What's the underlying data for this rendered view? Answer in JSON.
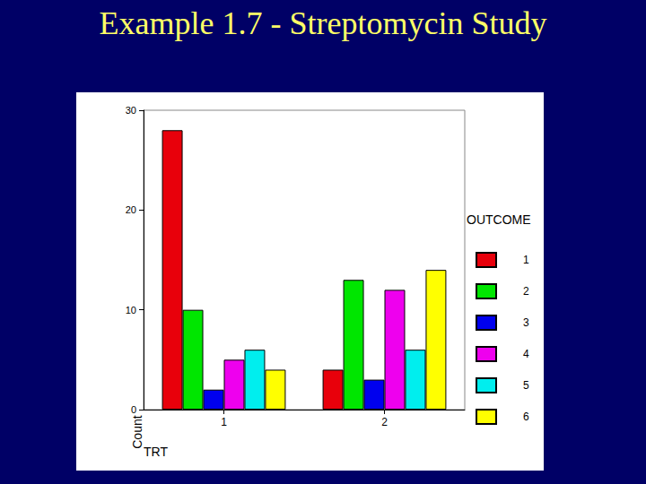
{
  "chart_data": {
    "type": "bar",
    "title": "Example 1.7 - Streptomycin Study",
    "categories": [
      "1",
      "2"
    ],
    "x_label": "TRT",
    "y_label": "Count",
    "legend_title": "OUTCOME",
    "series": [
      {
        "name": "1",
        "color": "#e8000b",
        "values": [
          28,
          4
        ]
      },
      {
        "name": "2",
        "color": "#00e600",
        "values": [
          10,
          13
        ]
      },
      {
        "name": "3",
        "color": "#0000ee",
        "values": [
          2,
          3
        ]
      },
      {
        "name": "4",
        "color": "#ee00ee",
        "values": [
          5,
          12
        ]
      },
      {
        "name": "5",
        "color": "#00eeee",
        "values": [
          6,
          6
        ]
      },
      {
        "name": "6",
        "color": "#ffff00",
        "values": [
          4,
          14
        ]
      }
    ],
    "ylim": [
      0,
      30
    ],
    "yticks": [
      0,
      10,
      20,
      30
    ],
    "grid": false,
    "legend": "right"
  }
}
